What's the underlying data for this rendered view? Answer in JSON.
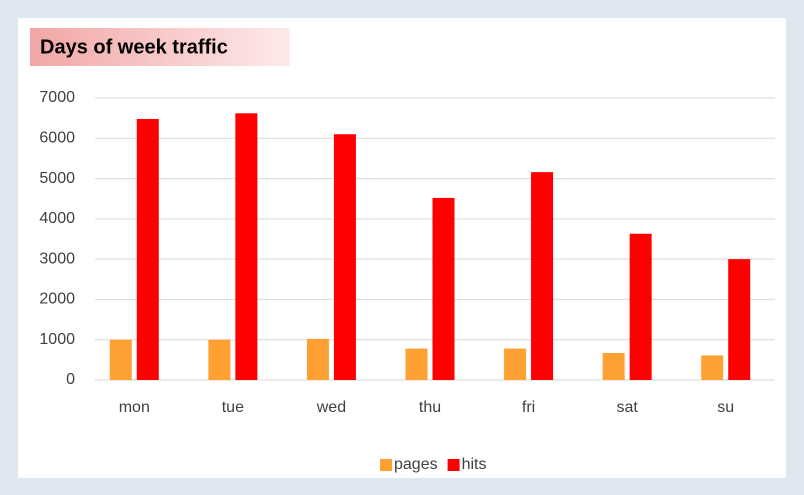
{
  "chart_data": {
    "type": "bar",
    "title": "Days of week traffic",
    "categories": [
      "mon",
      "tue",
      "wed",
      "thu",
      "fri",
      "sat",
      "su"
    ],
    "series": [
      {
        "name": "pages",
        "color": "#ffa033",
        "values": [
          1000,
          1000,
          1020,
          780,
          780,
          670,
          610
        ]
      },
      {
        "name": "hits",
        "color": "#ff0000",
        "values": [
          6480,
          6620,
          6100,
          4520,
          5160,
          3630,
          3000
        ]
      }
    ],
    "ylim": [
      0,
      7000
    ],
    "yticks": [
      0,
      1000,
      2000,
      3000,
      4000,
      5000,
      6000,
      7000
    ],
    "grid": true,
    "legend": "bottom"
  }
}
